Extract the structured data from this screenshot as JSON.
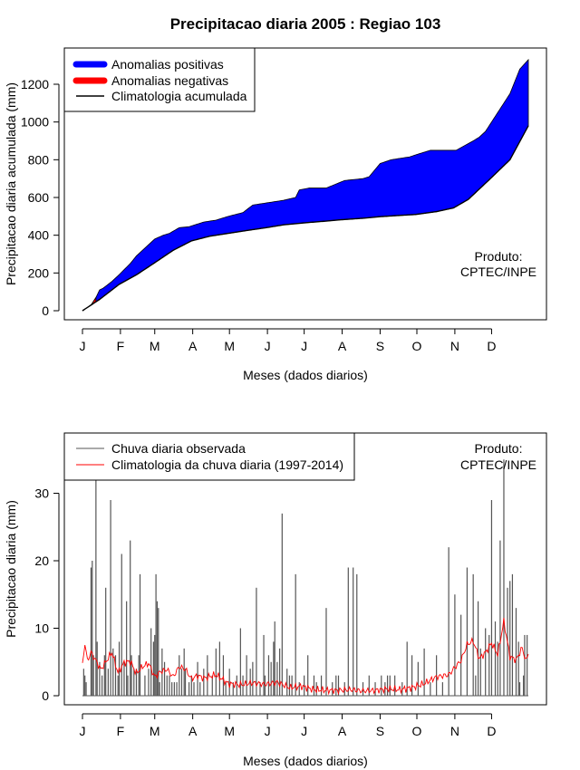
{
  "page_title": "Precipitacao diaria 2005 : Regiao 103",
  "chart_data": [
    {
      "type": "area",
      "title": "Precipitacao diaria 2005 : Regiao 103",
      "xlabel": "Meses (dados diarios)",
      "ylabel": "Precipitacao diaria acumulada (mm)",
      "month_labels": [
        "J",
        "F",
        "M",
        "A",
        "M",
        "J",
        "J",
        "A",
        "S",
        "O",
        "N",
        "D"
      ],
      "ylim": [
        0,
        1350
      ],
      "yticks": [
        0,
        200,
        400,
        600,
        800,
        1000,
        1200
      ],
      "legend": [
        "Anomalias positivas",
        "Anomalias negativas",
        "Climatologia acumulada"
      ],
      "legend_colors": [
        "#0000ff",
        "#ff0000",
        "#000000"
      ],
      "annotation": [
        "Produto:",
        "CPTEC/INPE"
      ],
      "climatology_cumulative": {
        "day": [
          1,
          15,
          31,
          45,
          59,
          75,
          90,
          105,
          120,
          135,
          151,
          165,
          181,
          200,
          212,
          230,
          243,
          260,
          273,
          290,
          304,
          316,
          334,
          350,
          365
        ],
        "mm": [
          0,
          60,
          140,
          190,
          250,
          320,
          370,
          395,
          410,
          425,
          440,
          455,
          465,
          475,
          482,
          490,
          498,
          505,
          510,
          525,
          545,
          590,
          700,
          800,
          980
        ]
      },
      "observed_cumulative": {
        "day": [
          1,
          8,
          12,
          15,
          18,
          25,
          30,
          40,
          45,
          60,
          67,
          72,
          80,
          88,
          100,
          110,
          120,
          126,
          132,
          140,
          150,
          165,
          175,
          178,
          186,
          200,
          215,
          230,
          235,
          244,
          253,
          263,
          268,
          275,
          285,
          306,
          320,
          325,
          330,
          340,
          350,
          358,
          365
        ],
        "mm": [
          0,
          30,
          70,
          110,
          120,
          155,
          185,
          250,
          290,
          380,
          400,
          410,
          440,
          445,
          470,
          480,
          500,
          510,
          520,
          560,
          570,
          585,
          600,
          640,
          650,
          650,
          690,
          700,
          710,
          780,
          800,
          810,
          815,
          830,
          850,
          850,
          900,
          920,
          950,
          1050,
          1150,
          1280,
          1330
        ]
      }
    },
    {
      "type": "bar",
      "xlabel": "Meses (dados diarios)",
      "ylabel": "Precipitacao diaria (mm)",
      "month_labels": [
        "J",
        "F",
        "M",
        "A",
        "M",
        "J",
        "J",
        "A",
        "S",
        "O",
        "N",
        "D"
      ],
      "ylim": [
        0,
        38
      ],
      "yticks": [
        0,
        10,
        20,
        30
      ],
      "legend": [
        "Chuva diaria observada",
        "Climatologia da chuva diaria (1997-2014)"
      ],
      "legend_colors": [
        "#555555",
        "#ff0000"
      ],
      "annotation": [
        "Produto:",
        "CPTEC/INPE"
      ],
      "observed_daily": {
        "day": [
          2,
          3,
          4,
          8,
          9,
          10,
          12,
          13,
          15,
          17,
          19,
          20,
          22,
          24,
          26,
          28,
          30,
          31,
          33,
          35,
          37,
          38,
          40,
          41,
          43,
          45,
          47,
          48,
          52,
          55,
          57,
          59,
          60,
          61,
          62,
          63,
          64,
          66,
          68,
          70,
          72,
          74,
          76,
          78,
          80,
          82,
          84,
          85,
          88,
          90,
          92,
          95,
          97,
          100,
          103,
          107,
          110,
          113,
          116,
          118,
          121,
          124,
          127,
          130,
          132,
          135,
          138,
          140,
          143,
          146,
          149,
          150,
          153,
          155,
          157,
          158,
          160,
          162,
          164,
          168,
          170,
          172,
          175,
          178,
          182,
          185,
          190,
          192,
          196,
          200,
          205,
          208,
          210,
          215,
          218,
          222,
          225,
          230,
          235,
          240,
          245,
          248,
          250,
          252,
          256,
          262,
          266,
          270,
          275,
          280,
          285,
          290,
          295,
          300,
          305,
          310,
          315,
          320,
          322,
          324,
          326,
          330,
          333,
          335,
          338,
          340,
          342,
          345,
          348,
          350,
          352,
          355,
          357,
          358,
          361,
          362,
          364
        ],
        "mm": [
          4,
          3,
          2,
          19,
          20,
          6,
          32,
          8,
          5,
          3,
          6,
          16,
          4,
          29,
          7,
          6,
          3,
          8,
          21,
          5,
          14,
          3,
          23,
          6,
          4,
          4,
          6,
          18,
          3,
          4,
          10,
          8,
          9,
          18,
          14,
          13,
          2,
          7,
          5,
          3,
          3,
          2,
          2,
          2,
          6,
          4,
          7,
          4,
          2,
          3,
          2,
          5,
          2,
          4,
          6,
          3,
          7,
          8,
          6,
          2,
          4,
          2,
          3,
          10,
          3,
          6,
          4,
          5,
          16,
          2,
          9,
          3,
          6,
          5,
          8,
          11,
          5,
          7,
          27,
          4,
          3,
          3,
          18,
          2,
          3,
          6,
          3,
          2,
          3,
          13,
          2,
          3,
          3,
          2,
          19,
          19,
          18,
          2,
          3,
          2,
          3,
          2,
          3,
          3,
          3,
          2,
          8,
          6,
          5,
          7,
          2,
          6,
          2,
          22,
          15,
          12,
          19,
          18,
          3,
          14,
          7,
          10,
          9,
          29,
          11,
          8,
          23,
          35,
          16,
          17,
          18,
          13,
          8,
          2,
          3,
          9,
          9
        ]
      },
      "climatology_daily": {
        "day": [
          1,
          3,
          5,
          8,
          12,
          16,
          20,
          25,
          30,
          35,
          40,
          45,
          50,
          55,
          60,
          65,
          70,
          75,
          80,
          85,
          90,
          95,
          100,
          110,
          120,
          130,
          140,
          150,
          160,
          170,
          180,
          190,
          200,
          210,
          220,
          230,
          240,
          250,
          260,
          270,
          280,
          290,
          300,
          305,
          310,
          315,
          320,
          325,
          330,
          335,
          340,
          345,
          350,
          355,
          360,
          363,
          365
        ],
        "mm": [
          4.5,
          7.8,
          5.2,
          6.4,
          5.2,
          3.9,
          5.0,
          6.4,
          3.4,
          4.9,
          5.1,
          3.3,
          4.3,
          4.8,
          2.8,
          3.6,
          3.9,
          2.8,
          4.3,
          3.9,
          2.5,
          3.0,
          2.6,
          3.1,
          1.8,
          1.6,
          1.9,
          1.7,
          2.0,
          1.2,
          1.4,
          0.9,
          0.8,
          0.8,
          0.9,
          0.7,
          0.8,
          1.0,
          0.9,
          1.2,
          1.8,
          2.8,
          3.1,
          4.2,
          5.2,
          7.6,
          8.1,
          5.5,
          6.4,
          7.8,
          6.1,
          11.0,
          5.8,
          5.3,
          7.1,
          5.1,
          6.4
        ]
      }
    }
  ]
}
